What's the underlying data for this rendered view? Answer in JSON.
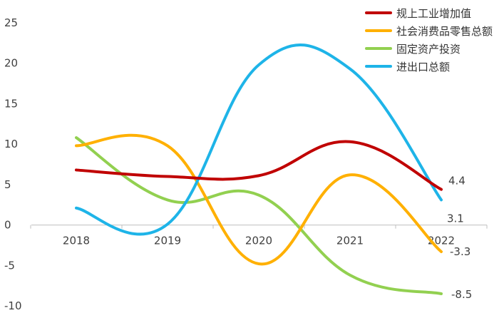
{
  "chart_data": {
    "type": "line",
    "categories": [
      "2018",
      "2019",
      "2020",
      "2021",
      "2022"
    ],
    "yticks": [
      "25",
      "20",
      "15",
      "10",
      "5",
      "0",
      "-5",
      "-10"
    ],
    "ylim": [
      -10,
      25
    ],
    "grid": false,
    "legend_position": "top-right",
    "series": [
      {
        "name": "规上工业增加值",
        "color": "#C00000",
        "values": [
          6.8,
          6.0,
          6.1,
          10.3,
          4.4
        ]
      },
      {
        "name": "社会消费品零售总额",
        "color": "#FFB000",
        "values": [
          9.8,
          9.8,
          -4.8,
          6.2,
          -3.3
        ]
      },
      {
        "name": "固定资产投资",
        "color": "#92D050",
        "values": [
          10.8,
          3.1,
          3.7,
          -6.2,
          -8.5
        ]
      },
      {
        "name": "进出口总额",
        "color": "#1EB4E8",
        "values": [
          2.1,
          0.1,
          19.8,
          19.3,
          3.1
        ]
      }
    ],
    "data_labels": [
      {
        "series": 0,
        "index": 4,
        "text": "4.4"
      },
      {
        "series": 3,
        "index": 4,
        "text": "3.1"
      },
      {
        "series": 1,
        "index": 4,
        "text": "-3.3"
      },
      {
        "series": 2,
        "index": 4,
        "text": "-8.5"
      }
    ]
  }
}
